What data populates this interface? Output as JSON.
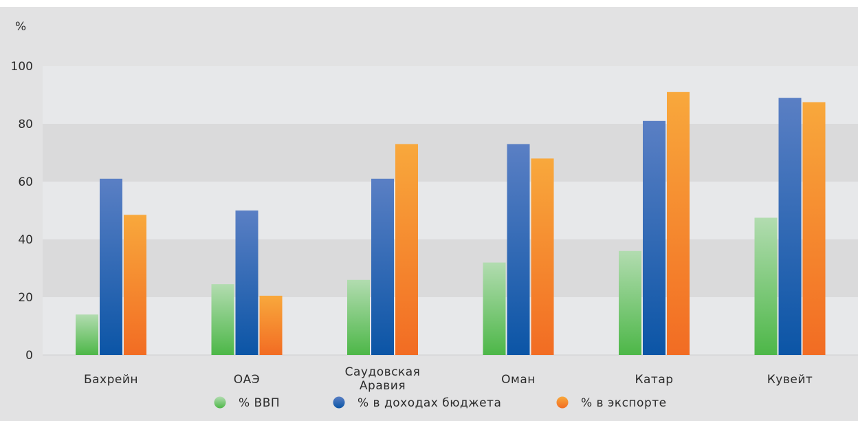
{
  "chart_data": {
    "type": "bar",
    "ylabel": "%",
    "ylim": [
      0,
      100
    ],
    "yticks": [
      0,
      20,
      40,
      60,
      80,
      100
    ],
    "categories": [
      [
        "Бахрейн"
      ],
      [
        "ОАЭ"
      ],
      [
        "Саудовская",
        "Аравия"
      ],
      [
        "Оман"
      ],
      [
        "Катар"
      ],
      [
        "Кувейт"
      ]
    ],
    "series": [
      {
        "name": "% ВВП",
        "color_top": "#b2dcb0",
        "color_bottom": "#4db748",
        "values": [
          14,
          24.5,
          26,
          32,
          36,
          47.5
        ]
      },
      {
        "name": "% в доходах бюджета",
        "color_top": "#5a7fc4",
        "color_bottom": "#0b55a6",
        "values": [
          61,
          50,
          61,
          73,
          81,
          89
        ]
      },
      {
        "name": "% в экспорте",
        "color_top": "#f8a83c",
        "color_bottom": "#f26c23",
        "values": [
          48.5,
          20.5,
          73,
          68,
          91,
          87.5
        ]
      }
    ],
    "grid": "alternating bands",
    "legend": "bottom-center"
  }
}
